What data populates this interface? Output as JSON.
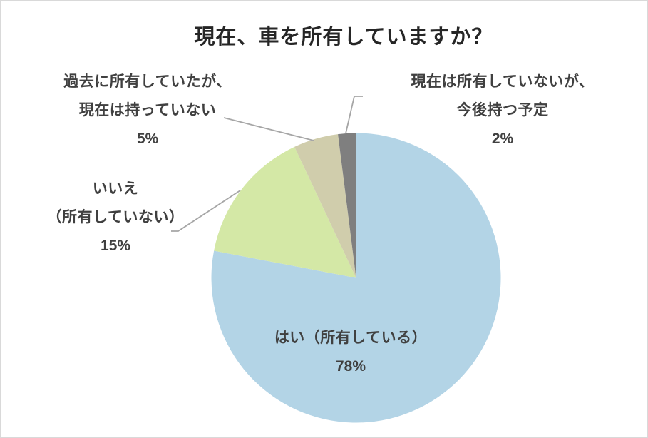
{
  "chart_data": {
    "type": "pie",
    "title": "現在、車を所有していますか？",
    "total": 100,
    "start_angle_deg": 0,
    "direction": "clockwise",
    "legend": "none",
    "slices": [
      {
        "label": "はい（所有している）",
        "value": 78,
        "pct_label": "78%",
        "color": "#B3D4E6",
        "label_lines": [
          "はい（所有している）"
        ],
        "label_placement": "inside-bottom"
      },
      {
        "label": "いいえ（所有していない）",
        "value": 15,
        "pct_label": "15%",
        "color": "#D4E8A6",
        "label_lines": [
          "いいえ",
          "（所有していない）"
        ],
        "label_placement": "outside-left"
      },
      {
        "label": "過去に所有していたが、現在は持っていない",
        "value": 5,
        "pct_label": "5%",
        "color": "#D0CDAC",
        "label_lines": [
          "過去に所有していたが、",
          "現在は持っていない"
        ],
        "label_placement": "outside-top-left"
      },
      {
        "label": "現在は所有していないが、今後持つ予定",
        "value": 2,
        "pct_label": "2%",
        "color": "#7F7F7F",
        "label_lines": [
          "現在は所有していないが、",
          "今後持つ予定"
        ],
        "label_placement": "outside-top-right"
      }
    ]
  },
  "colors": {
    "title_text": "#262626",
    "label_text": "#404040",
    "leader_line": "#A6A6A6",
    "frame_border": "#D9D9D9",
    "background": "#FFFFFF"
  }
}
